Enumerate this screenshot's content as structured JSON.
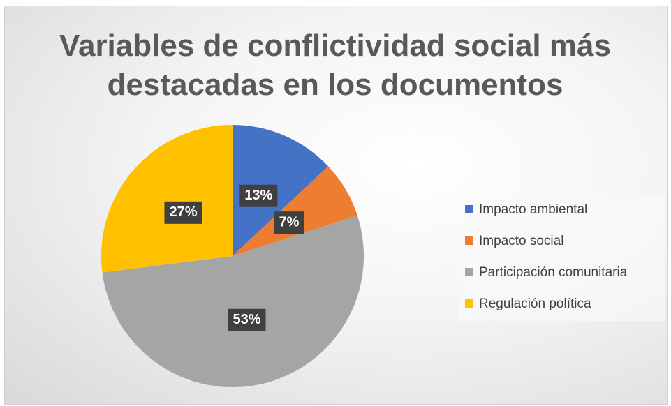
{
  "chart_data": {
    "type": "pie",
    "title": "Variables de conflictividad social más destacadas en los documentos",
    "categories": [
      "Impacto ambiental",
      "Impacto social",
      "Participación comunitaria",
      "Regulación política"
    ],
    "values": [
      13,
      7,
      53,
      27
    ],
    "value_labels": [
      "13%",
      "7%",
      "53%",
      "27%"
    ],
    "colors": [
      "#4472c4",
      "#ed7d31",
      "#a5a5a5",
      "#ffc000"
    ],
    "legend": "right"
  }
}
